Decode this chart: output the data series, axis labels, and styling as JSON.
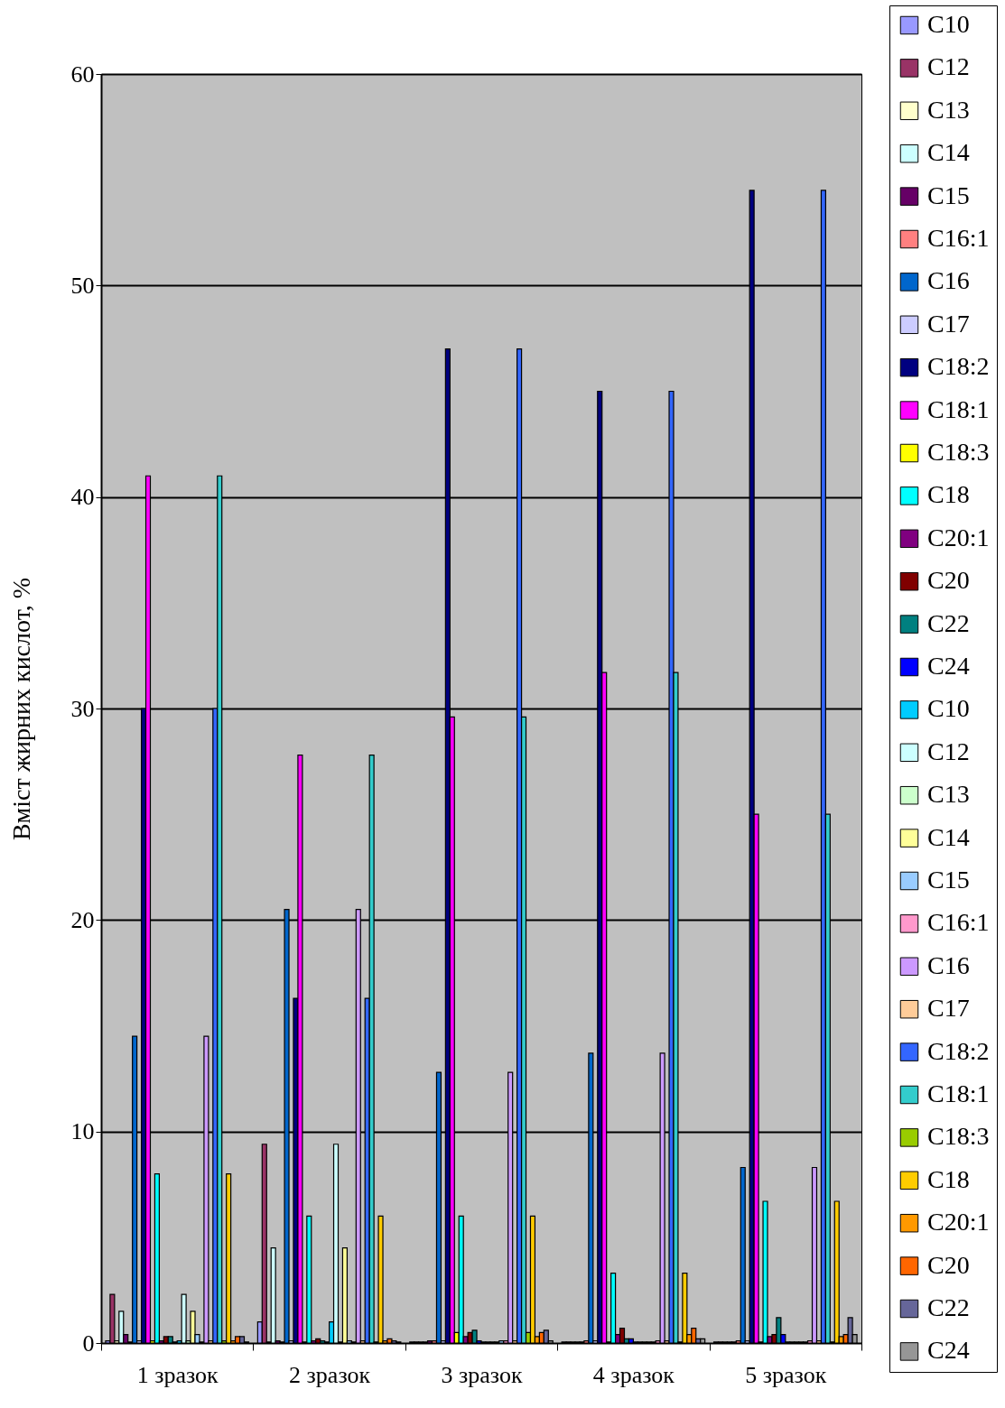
{
  "chart_data": {
    "type": "bar",
    "ylabel": "Вміст жирних кислот, %",
    "categories": [
      "1 зразок",
      "2 зразок",
      "3 зразок",
      "4 зразок",
      "5 зразок"
    ],
    "ylim": [
      0,
      60
    ],
    "yticks": [
      0,
      10,
      20,
      30,
      40,
      50,
      60
    ],
    "grid": "y",
    "legend": "right",
    "series": [
      {
        "name": "C10",
        "color": "#9999ff",
        "values": [
          0.1,
          1.0,
          0.05,
          0.05,
          0.05
        ]
      },
      {
        "name": "C12",
        "color": "#993366",
        "values": [
          2.3,
          9.4,
          0.05,
          0.05,
          0.05
        ]
      },
      {
        "name": "C13",
        "color": "#ffffcc",
        "values": [
          0.1,
          0.05,
          0.05,
          0.05,
          0.05
        ]
      },
      {
        "name": "C14",
        "color": "#ccffff",
        "values": [
          1.5,
          4.5,
          0.05,
          0.05,
          0.05
        ]
      },
      {
        "name": "C15",
        "color": "#660066",
        "values": [
          0.4,
          0.1,
          0.1,
          0.05,
          0.05
        ]
      },
      {
        "name": "C16:1",
        "color": "#ff8080",
        "values": [
          0.05,
          0.05,
          0.1,
          0.1,
          0.1
        ]
      },
      {
        "name": "C16",
        "color": "#0066cc",
        "values": [
          14.5,
          20.5,
          12.8,
          13.7,
          8.3
        ]
      },
      {
        "name": "C17",
        "color": "#ccccff",
        "values": [
          0.1,
          0.1,
          0.1,
          0.1,
          0.1
        ]
      },
      {
        "name": "C18:2",
        "color": "#000080",
        "values": [
          30,
          16.3,
          47,
          45,
          54.5
        ]
      },
      {
        "name": "C18:1",
        "color": "#ff00ff",
        "values": [
          41,
          27.8,
          29.6,
          31.7,
          25
        ]
      },
      {
        "name": "C18:3",
        "color": "#ffff00",
        "values": [
          0.1,
          0.05,
          0.5,
          0.05,
          0.05
        ]
      },
      {
        "name": "C18",
        "color": "#00ffff",
        "values": [
          8,
          6,
          6,
          3.3,
          6.7
        ]
      },
      {
        "name": "C20:1",
        "color": "#800080",
        "values": [
          0.1,
          0.1,
          0.3,
          0.4,
          0.3
        ]
      },
      {
        "name": "C20",
        "color": "#800000",
        "values": [
          0.3,
          0.2,
          0.5,
          0.7,
          0.4
        ]
      },
      {
        "name": "C22",
        "color": "#008080",
        "values": [
          0.3,
          0.1,
          0.6,
          0.2,
          1.2
        ]
      },
      {
        "name": "C24",
        "color": "#0000ff",
        "values": [
          0.05,
          0.05,
          0.1,
          0.2,
          0.4
        ]
      },
      {
        "name": "C10",
        "color": "#00ccff",
        "values": [
          0.1,
          1.0,
          0.05,
          0.05,
          0.05
        ]
      },
      {
        "name": "C12",
        "color": "#ccffff",
        "values": [
          2.3,
          9.4,
          0.05,
          0.05,
          0.05
        ]
      },
      {
        "name": "C13",
        "color": "#ccffcc",
        "values": [
          0.1,
          0.05,
          0.05,
          0.05,
          0.05
        ]
      },
      {
        "name": "C14",
        "color": "#ffff99",
        "values": [
          1.5,
          4.5,
          0.05,
          0.05,
          0.05
        ]
      },
      {
        "name": "C15",
        "color": "#99ccff",
        "values": [
          0.4,
          0.1,
          0.1,
          0.05,
          0.05
        ]
      },
      {
        "name": "C16:1",
        "color": "#ff99cc",
        "values": [
          0.05,
          0.05,
          0.1,
          0.1,
          0.1
        ]
      },
      {
        "name": "C16",
        "color": "#cc99ff",
        "values": [
          14.5,
          20.5,
          12.8,
          13.7,
          8.3
        ]
      },
      {
        "name": "C17",
        "color": "#ffcc99",
        "values": [
          0.1,
          0.1,
          0.1,
          0.1,
          0.1
        ]
      },
      {
        "name": "C18:2",
        "color": "#3366ff",
        "values": [
          30,
          16.3,
          47,
          45,
          54.5
        ]
      },
      {
        "name": "C18:1",
        "color": "#33cccc",
        "values": [
          41,
          27.8,
          29.6,
          31.7,
          25
        ]
      },
      {
        "name": "C18:3",
        "color": "#99cc00",
        "values": [
          0.1,
          0.05,
          0.5,
          0.05,
          0.05
        ]
      },
      {
        "name": "C18",
        "color": "#ffcc00",
        "values": [
          8,
          6,
          6,
          3.3,
          6.7
        ]
      },
      {
        "name": "C20:1",
        "color": "#ff9900",
        "values": [
          0.1,
          0.1,
          0.3,
          0.4,
          0.3
        ]
      },
      {
        "name": "C20",
        "color": "#ff6600",
        "values": [
          0.3,
          0.2,
          0.5,
          0.7,
          0.4
        ]
      },
      {
        "name": "C22",
        "color": "#666699",
        "values": [
          0.3,
          0.1,
          0.6,
          0.2,
          1.2
        ]
      },
      {
        "name": "C24",
        "color": "#969696",
        "values": [
          0.05,
          0.05,
          0.1,
          0.2,
          0.4
        ]
      }
    ]
  }
}
